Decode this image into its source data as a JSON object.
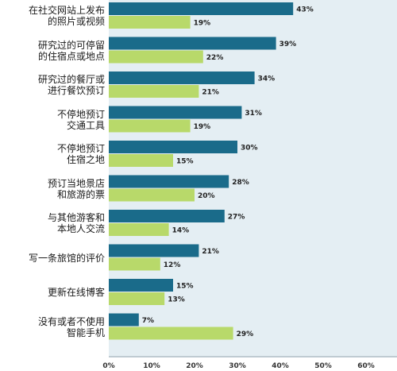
{
  "chart_data": {
    "type": "bar",
    "orientation": "horizontal",
    "categories": [
      "在社交网站上发布\n的照片或视频",
      "研究过的可停留\n的住宿点或地点",
      "研究过的餐厅或\n进行餐饮预订",
      "不停地预订\n交通工具",
      "不停地预订\n住宿之地",
      "预订当地景店\n和旅游的票",
      "与其他游客和\n本地人交流",
      "写一条旅馆的评价",
      "更新在线博客",
      "没有或者不使用\n智能手机"
    ],
    "series": [
      {
        "values": [
          43,
          39,
          34,
          31,
          30,
          28,
          27,
          21,
          15,
          7
        ],
        "color": "#1a6b8a"
      },
      {
        "values": [
          19,
          22,
          21,
          19,
          15,
          20,
          14,
          12,
          13,
          29
        ],
        "color": "#b8d96a"
      }
    ],
    "value_suffix": "%",
    "xlim": [
      0,
      60
    ],
    "xticks": [
      0,
      10,
      20,
      30,
      40,
      50,
      60
    ],
    "xtick_labels": [
      "0%",
      "10%",
      "20%",
      "30%",
      "40%",
      "50%",
      "60%"
    ],
    "grid": false,
    "legend": "none"
  }
}
